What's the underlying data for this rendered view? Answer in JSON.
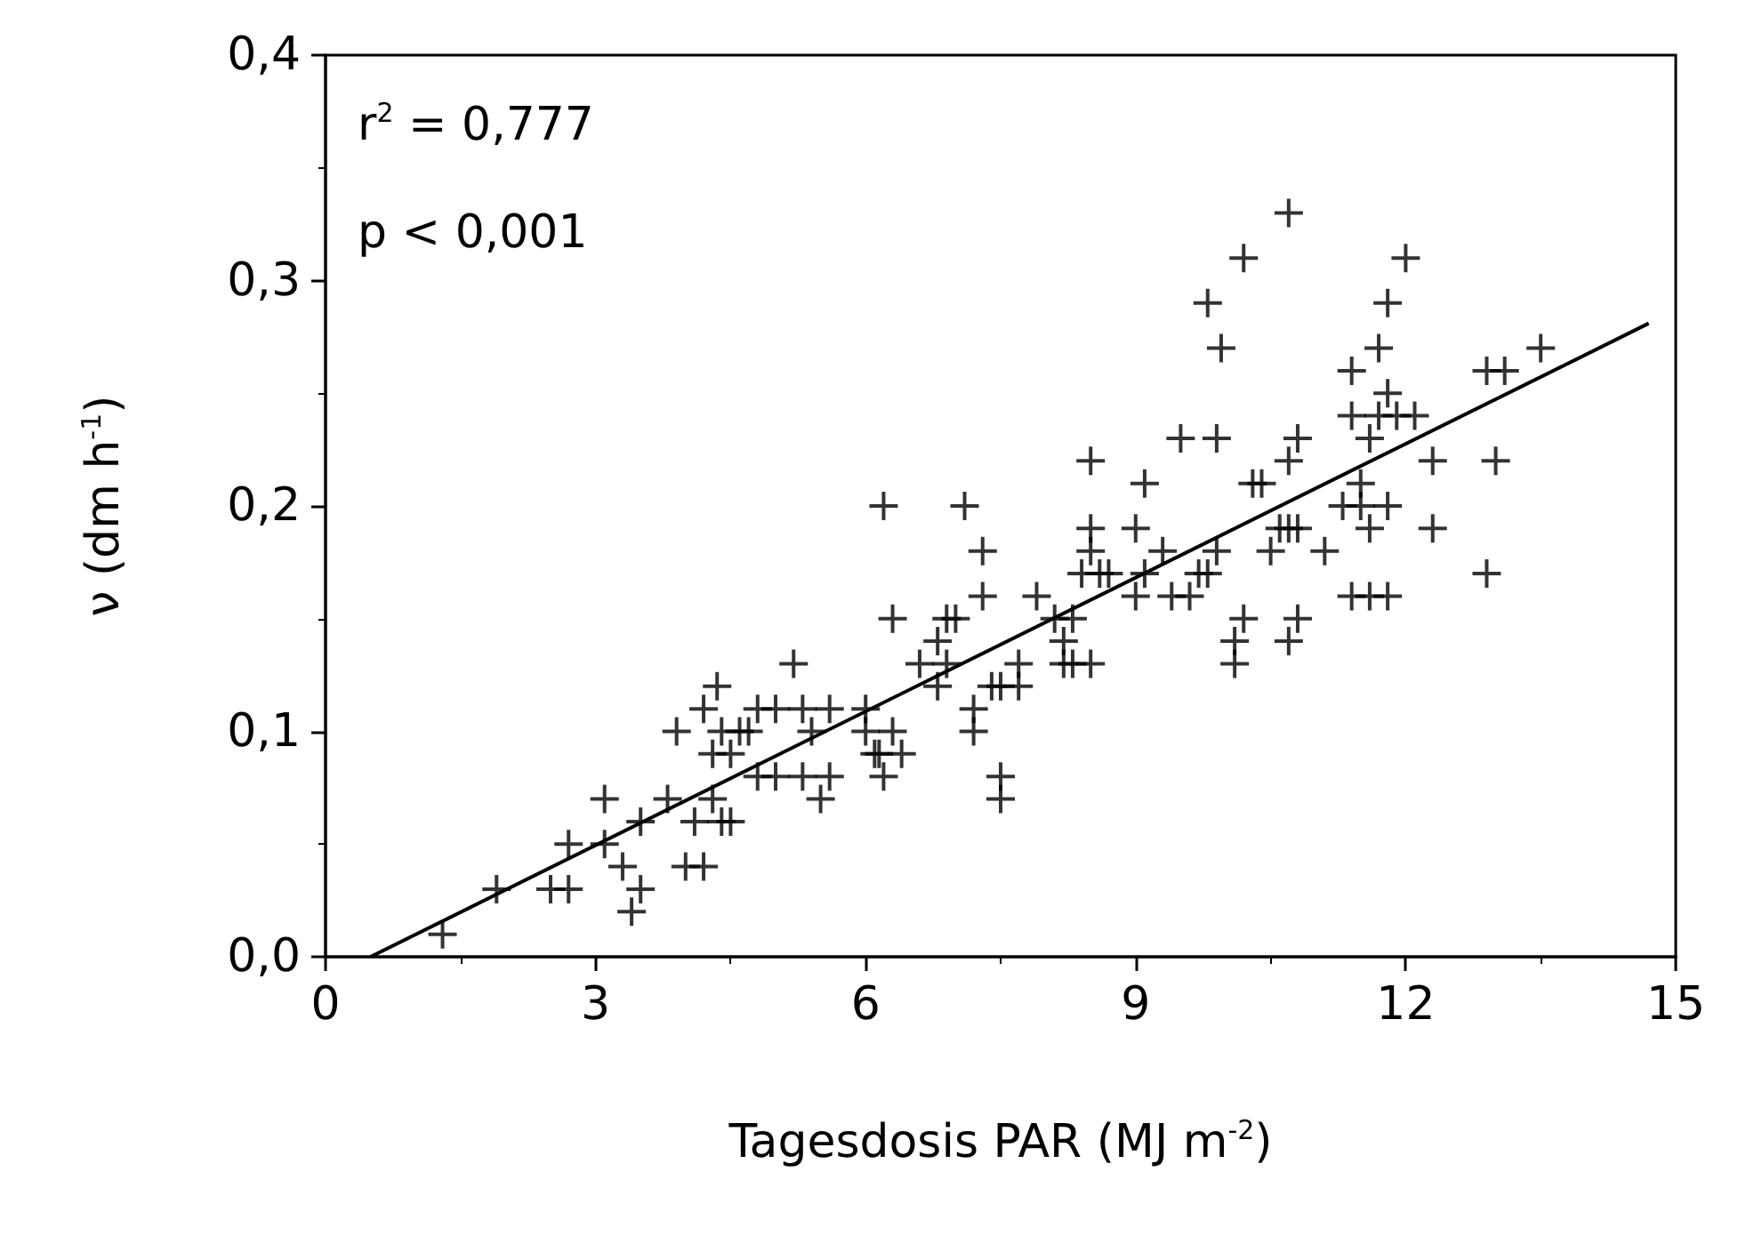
{
  "chart_data": {
    "type": "scatter",
    "xlabel": "Tagesdosis PAR (MJ m$^{-2}$)",
    "ylabel": "ν (dm h$^{-1}$)",
    "xlim": [
      0,
      15
    ],
    "xticks": [
      0,
      3,
      6,
      9,
      12,
      15
    ],
    "ylim": [
      0,
      0.4
    ],
    "yticks": [
      {
        "value": 0,
        "label": "0,0"
      },
      {
        "value": 0.1,
        "label": "0,1"
      },
      {
        "value": 0.2,
        "label": "0,2"
      },
      {
        "value": 0.3,
        "label": "0,3"
      },
      {
        "value": 0.4,
        "label": "0,4"
      }
    ],
    "grid": false,
    "marker": "cross",
    "annotations": [
      "r$^{2}$ = 0,777",
      "p < 0,001"
    ],
    "series": [
      {
        "color": "#000000",
        "x": [
          1.3,
          1.9,
          2.5,
          2.7,
          2.7,
          3.1,
          3.1,
          3.3,
          3.4,
          3.5,
          3.5,
          3.8,
          3.9,
          4.0,
          4.1,
          4.2,
          4.2,
          4.3,
          4.35,
          4.3,
          4.4,
          4.4,
          4.5,
          4.5,
          4.6,
          4.7,
          4.8,
          4.8,
          5.0,
          5.0,
          5.2,
          5.3,
          5.3,
          5.4,
          5.5,
          5.6,
          5.6,
          6.0,
          6.0,
          6.1,
          6.15,
          6.2,
          6.2,
          6.3,
          6.3,
          6.4,
          6.6,
          6.8,
          6.8,
          6.9,
          6.9,
          7.0,
          7.1,
          7.2,
          7.2,
          7.3,
          7.3,
          7.4,
          7.5,
          7.5,
          7.5,
          7.7,
          7.7,
          7.9,
          8.1,
          8.2,
          8.2,
          8.3,
          8.3,
          8.4,
          8.5,
          8.5,
          8.5,
          8.5,
          8.6,
          8.7,
          9.0,
          9.0,
          9.1,
          9.1,
          9.3,
          9.4,
          9.5,
          9.6,
          9.7,
          9.8,
          9.8,
          9.9,
          9.9,
          9.95,
          10.1,
          10.1,
          10.2,
          10.2,
          10.3,
          10.4,
          10.5,
          10.6,
          10.7,
          10.7,
          10.7,
          10.7,
          10.8,
          10.8,
          10.8,
          11.1,
          11.3,
          11.4,
          11.4,
          11.4,
          11.5,
          11.5,
          11.6,
          11.6,
          11.6,
          11.7,
          11.7,
          11.8,
          11.8,
          11.8,
          11.8,
          11.9,
          12.0,
          12.1,
          12.3,
          12.3,
          12.9,
          12.9,
          13.0,
          13.1,
          13.5
        ],
        "values": [
          0.01,
          0.03,
          0.03,
          0.05,
          0.03,
          0.05,
          0.07,
          0.04,
          0.02,
          0.03,
          0.06,
          0.07,
          0.1,
          0.04,
          0.06,
          0.04,
          0.11,
          0.07,
          0.12,
          0.09,
          0.06,
          0.1,
          0.06,
          0.09,
          0.1,
          0.1,
          0.11,
          0.08,
          0.11,
          0.08,
          0.13,
          0.08,
          0.11,
          0.1,
          0.07,
          0.11,
          0.08,
          0.11,
          0.1,
          0.09,
          0.09,
          0.08,
          0.2,
          0.1,
          0.15,
          0.09,
          0.13,
          0.14,
          0.12,
          0.15,
          0.13,
          0.15,
          0.2,
          0.1,
          0.11,
          0.18,
          0.16,
          0.12,
          0.12,
          0.08,
          0.07,
          0.12,
          0.13,
          0.16,
          0.15,
          0.13,
          0.14,
          0.13,
          0.15,
          0.17,
          0.13,
          0.19,
          0.18,
          0.22,
          0.17,
          0.17,
          0.19,
          0.16,
          0.21,
          0.17,
          0.18,
          0.16,
          0.23,
          0.16,
          0.17,
          0.17,
          0.29,
          0.18,
          0.23,
          0.27,
          0.13,
          0.14,
          0.15,
          0.31,
          0.21,
          0.21,
          0.18,
          0.19,
          0.33,
          0.22,
          0.19,
          0.14,
          0.19,
          0.23,
          0.15,
          0.18,
          0.2,
          0.26,
          0.24,
          0.16,
          0.21,
          0.2,
          0.19,
          0.23,
          0.16,
          0.27,
          0.24,
          0.16,
          0.2,
          0.25,
          0.29,
          0.24,
          0.31,
          0.24,
          0.22,
          0.19,
          0.17,
          0.26,
          0.22,
          0.26,
          0.27
        ]
      },
      {
        "type": "line",
        "color": "#000000",
        "marker": "none",
        "line_style": "solid",
        "x": [
          0.5,
          14.7
        ],
        "values": [
          0,
          0.281
        ]
      }
    ]
  }
}
